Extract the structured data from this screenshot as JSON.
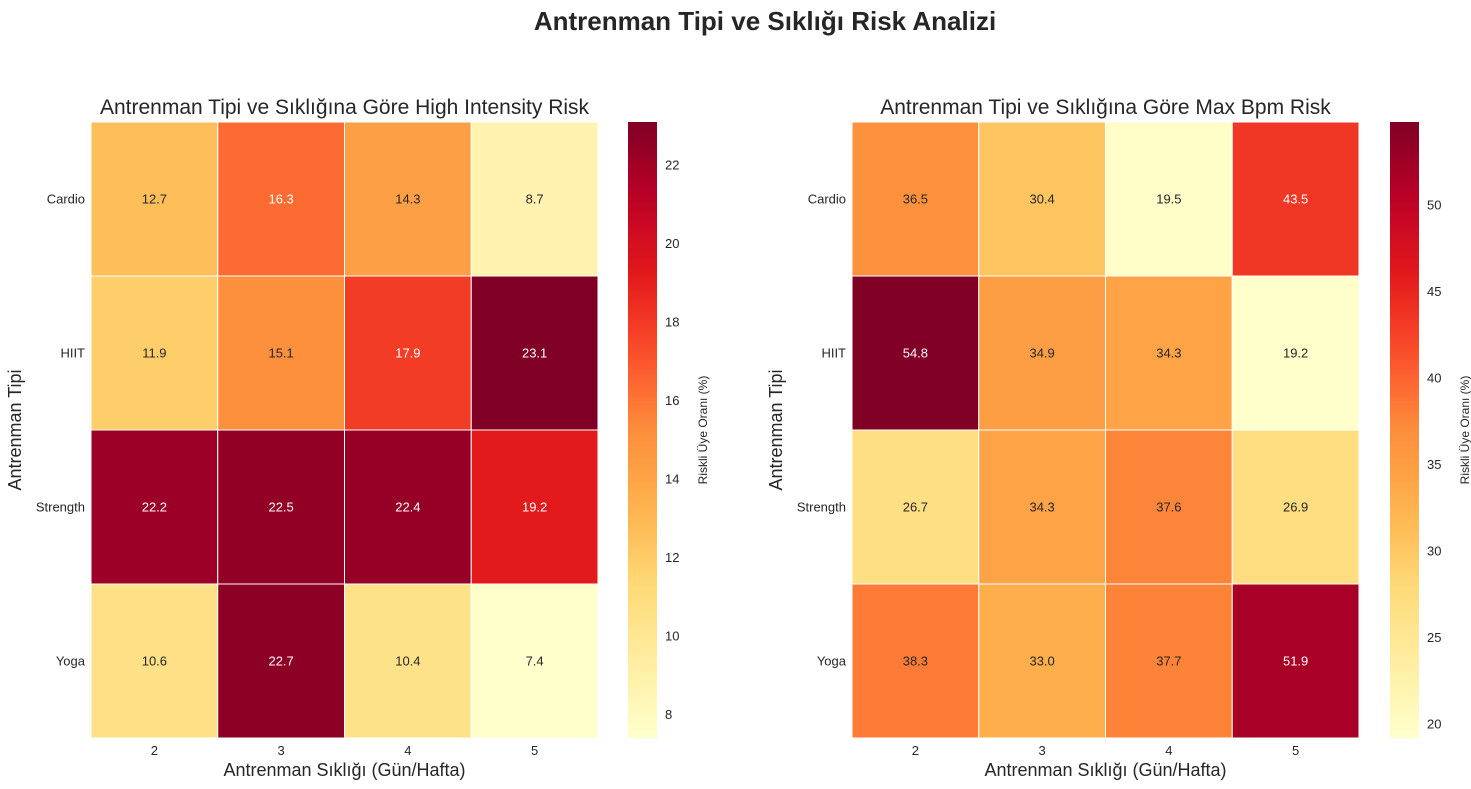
{
  "figure_title": "Antrenman Tipi ve Sıklığı Risk Analizi",
  "chart_data": [
    {
      "type": "heatmap",
      "title": "Antrenman Tipi ve Sıklığına Göre High Intensity Risk",
      "xlabel": "Antrenman Sıklığı (Gün/Hafta)",
      "ylabel": "Antrenman Tipi",
      "x_categories": [
        "2",
        "3",
        "4",
        "5"
      ],
      "y_categories": [
        "Cardio",
        "HIIT",
        "Strength",
        "Yoga"
      ],
      "values": [
        [
          12.7,
          16.3,
          14.3,
          8.7
        ],
        [
          11.9,
          15.1,
          17.9,
          23.1
        ],
        [
          22.2,
          22.5,
          22.4,
          19.2
        ],
        [
          10.6,
          22.7,
          10.4,
          7.4
        ]
      ],
      "colormap": "YlOrRd",
      "vmin": 7.4,
      "vmax": 23.1,
      "colorbar_label": "Riskli Üye Oranı (%)",
      "colorbar_ticks": [
        8,
        10,
        12,
        14,
        16,
        18,
        20,
        22
      ]
    },
    {
      "type": "heatmap",
      "title": "Antrenman Tipi ve Sıklığına Göre Max Bpm Risk",
      "xlabel": "Antrenman Sıklığı (Gün/Hafta)",
      "ylabel": "Antrenman Tipi",
      "x_categories": [
        "2",
        "3",
        "4",
        "5"
      ],
      "y_categories": [
        "Cardio",
        "HIIT",
        "Strength",
        "Yoga"
      ],
      "values": [
        [
          36.5,
          30.4,
          19.5,
          43.5
        ],
        [
          54.8,
          34.9,
          34.3,
          19.2
        ],
        [
          26.7,
          34.3,
          37.6,
          26.9
        ],
        [
          38.3,
          33.0,
          37.7,
          51.9
        ]
      ],
      "colormap": "YlOrRd",
      "vmin": 19.2,
      "vmax": 54.8,
      "colorbar_label": "Riskli Üye Oranı (%)",
      "colorbar_ticks": [
        20,
        25,
        30,
        35,
        40,
        45,
        50
      ]
    }
  ]
}
